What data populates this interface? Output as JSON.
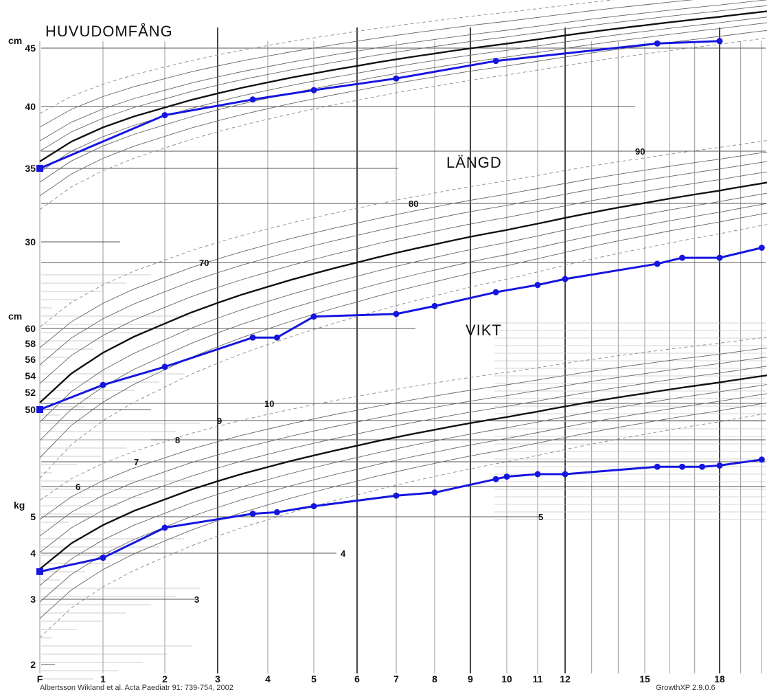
{
  "chart_data": {
    "type": "line",
    "panels": [
      {
        "name": "HUVUDOMFÅNG",
        "unit": "cm",
        "ticks": [
          "35",
          "40",
          "45"
        ],
        "series": [
          {
            "name": "",
            "x": [
              0,
              2,
              3.7,
              5,
              7,
              9.7,
              15.5,
              18
            ],
            "values": [
              35,
              39.3,
              40.6,
              41.4,
              42.4,
              43.9,
              45.4,
              45.6
            ]
          }
        ]
      },
      {
        "name": "LÄNGD",
        "unit": "cm",
        "ticks": [
          "50",
          "52",
          "54",
          "56",
          "58",
          "60",
          "30",
          "70",
          "80",
          "90"
        ],
        "series": [
          {
            "name": "",
            "x": [
              0,
              1,
              2,
              3.7,
              4.2,
              5,
              7,
              8,
              9.7,
              11,
              12,
              15.5,
              16.5,
              18,
              20
            ],
            "values": [
              50,
              52.9,
              55.1,
              58.8,
              58.8,
              61.8,
              62.2,
              63.4,
              65.5,
              66.6,
              67.5,
              69.8,
              70.8,
              70.8,
              72.5
            ]
          }
        ]
      },
      {
        "name": "VIKT",
        "unit": "kg",
        "ticks": [
          "2",
          "3",
          "4",
          "5",
          "6",
          "7",
          "8",
          "9",
          "10"
        ],
        "series": [
          {
            "name": "",
            "x": [
              0,
              1,
              2,
              3.7,
              4.2,
              5,
              7,
              8,
              9.7,
              10,
              11,
              12,
              15.5,
              16.5,
              17.3,
              18,
              20
            ],
            "values": [
              3.6,
              3.9,
              4.7,
              5.1,
              5.15,
              5.35,
              5.7,
              5.8,
              6.3,
              6.4,
              6.5,
              6.5,
              6.8,
              6.8,
              6.8,
              6.85,
              7.1
            ]
          }
        ]
      }
    ],
    "x_ticks": [
      "F",
      "1",
      "2",
      "3",
      "4",
      "5",
      "6",
      "7",
      "8",
      "9",
      "10",
      "11",
      "12",
      "15",
      "18"
    ]
  },
  "labels": {
    "title": "HUVUDOMFÅNG",
    "length": "LÄNGD",
    "weight": "VIKT",
    "cm_top": "cm",
    "cm_mid": "cm",
    "kg": "kg",
    "footer_left": "Albertsson Wikland et al.  Acta Paediatr 91: 739-754, 2002",
    "footer_right": "GrowthXP 2.9.0.6"
  },
  "colors": {
    "measurement": "#1515e0",
    "median": "#111111",
    "percentile": "#666666",
    "grid": "#555555"
  }
}
